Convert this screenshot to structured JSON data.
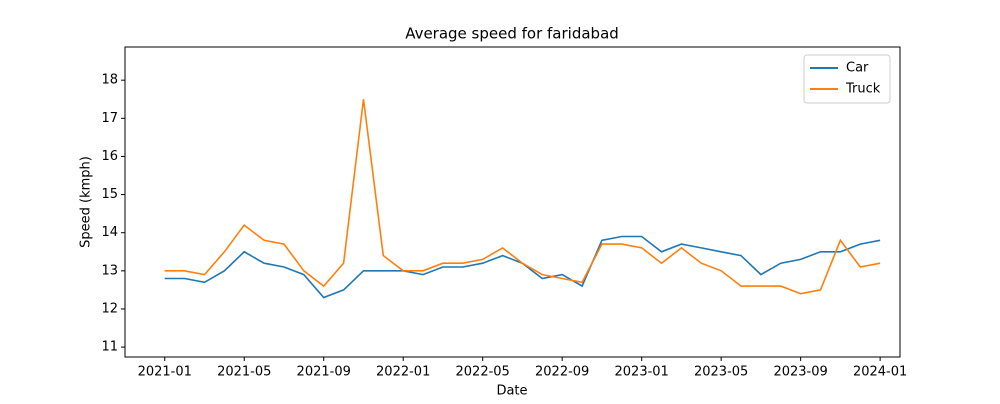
{
  "chart_data": {
    "type": "line",
    "title": "Average speed for faridabad",
    "xlabel": "Date",
    "ylabel": "Speed (kmph)",
    "x": [
      "2021-01",
      "2021-02",
      "2021-03",
      "2021-04",
      "2021-05",
      "2021-06",
      "2021-07",
      "2021-08",
      "2021-09",
      "2021-10",
      "2021-11",
      "2021-12",
      "2022-01",
      "2022-02",
      "2022-03",
      "2022-04",
      "2022-05",
      "2022-06",
      "2022-07",
      "2022-08",
      "2022-09",
      "2022-10",
      "2022-11",
      "2022-12",
      "2023-01",
      "2023-02",
      "2023-03",
      "2023-04",
      "2023-05",
      "2023-06",
      "2023-07",
      "2023-08",
      "2023-09",
      "2023-10",
      "2023-11",
      "2023-12",
      "2024-01"
    ],
    "series": [
      {
        "name": "Car",
        "color": "#1f77b4",
        "values": [
          12.8,
          12.8,
          12.7,
          13.0,
          13.5,
          13.2,
          13.1,
          12.9,
          12.3,
          12.5,
          13.0,
          13.0,
          13.0,
          12.9,
          13.1,
          13.1,
          13.2,
          13.4,
          13.2,
          12.8,
          12.9,
          12.6,
          13.8,
          13.9,
          13.9,
          13.5,
          13.7,
          13.6,
          13.5,
          13.4,
          12.9,
          13.2,
          13.3,
          13.5,
          13.5,
          13.7,
          13.8
        ]
      },
      {
        "name": "Truck",
        "color": "#ff7f0e",
        "values": [
          13.0,
          13.0,
          12.9,
          13.5,
          14.2,
          13.8,
          13.7,
          13.0,
          12.6,
          13.2,
          17.5,
          13.4,
          13.0,
          13.0,
          13.2,
          13.2,
          13.3,
          13.6,
          13.2,
          12.9,
          12.8,
          12.7,
          13.7,
          13.7,
          13.6,
          13.2,
          13.6,
          13.2,
          13.0,
          12.6,
          12.6,
          12.6,
          12.4,
          12.5,
          13.8,
          13.1,
          13.2
        ]
      }
    ],
    "xlim": [
      "2020-11",
      "2024-02"
    ],
    "xticks": [
      "2021-01",
      "2021-05",
      "2021-09",
      "2022-01",
      "2022-05",
      "2022-09",
      "2023-01",
      "2023-05",
      "2023-09",
      "2024-01"
    ],
    "ylim": [
      10.74,
      18.87
    ],
    "yticks": [
      11,
      12,
      13,
      14,
      15,
      16,
      17,
      18
    ],
    "legend": "upper right"
  }
}
